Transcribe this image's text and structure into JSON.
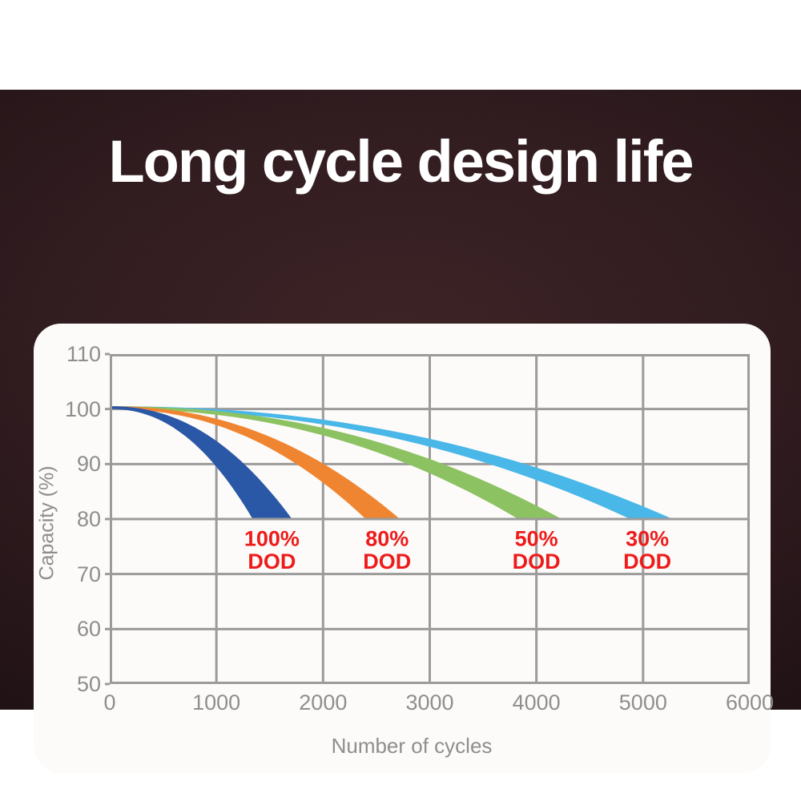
{
  "hero": {
    "title": "Long cycle design life",
    "title_color": "#ffffff",
    "bg_color": "#2b161a"
  },
  "chart_data": {
    "type": "area",
    "title": "Long cycle design life",
    "xlabel": "Number of cycles",
    "ylabel": "Capacity (%)",
    "xlim": [
      0,
      6000
    ],
    "ylim": [
      50,
      110
    ],
    "x_ticks": [
      0,
      1000,
      2000,
      3000,
      4000,
      5000,
      6000
    ],
    "y_ticks": [
      110,
      100,
      90,
      80,
      70,
      60,
      50
    ],
    "grid": true,
    "grid_color": "#9b9b9b",
    "tick_label_color": "#8e8e8e",
    "plot_bg": "#fcfbf9",
    "annotation_color": "#ee1b1b",
    "annotation_rows_pct": [
      76.4,
      72.3
    ],
    "start_capacity": 100,
    "end_capacity": 80,
    "series": [
      {
        "name": "30% DOD",
        "color": "#49b7e8",
        "label_lines": [
          "30%",
          "DOD"
        ],
        "label_x": 5040,
        "band_end_lower": 4880,
        "band_end_upper": 5220,
        "points": [
          [
            0,
            100
          ],
          [
            1000,
            99
          ],
          [
            2000,
            97
          ],
          [
            3000,
            93.5
          ],
          [
            4000,
            87.5
          ],
          [
            5050,
            80
          ]
        ]
      },
      {
        "name": "50% DOD",
        "color": "#8dc263",
        "label_lines": [
          "50%",
          "DOD"
        ],
        "label_x": 4000,
        "band_end_lower": 3830,
        "band_end_upper": 4190,
        "points": [
          [
            0,
            100
          ],
          [
            1000,
            99
          ],
          [
            2000,
            95
          ],
          [
            3000,
            89
          ],
          [
            4010,
            80
          ]
        ]
      },
      {
        "name": "80% DOD",
        "color": "#f08531",
        "label_lines": [
          "80%",
          "DOD"
        ],
        "label_x": 2600,
        "band_end_lower": 2400,
        "band_end_upper": 2690,
        "points": [
          [
            0,
            100
          ],
          [
            1000,
            97
          ],
          [
            2000,
            88
          ],
          [
            2545,
            80
          ]
        ]
      },
      {
        "name": "100% DOD",
        "color": "#2b57a7",
        "label_lines": [
          "100%",
          "DOD"
        ],
        "label_x": 1520,
        "band_end_lower": 1340,
        "band_end_upper": 1690,
        "points": [
          [
            0,
            100
          ],
          [
            500,
            98
          ],
          [
            1000,
            91
          ],
          [
            1515,
            80
          ]
        ]
      }
    ]
  }
}
